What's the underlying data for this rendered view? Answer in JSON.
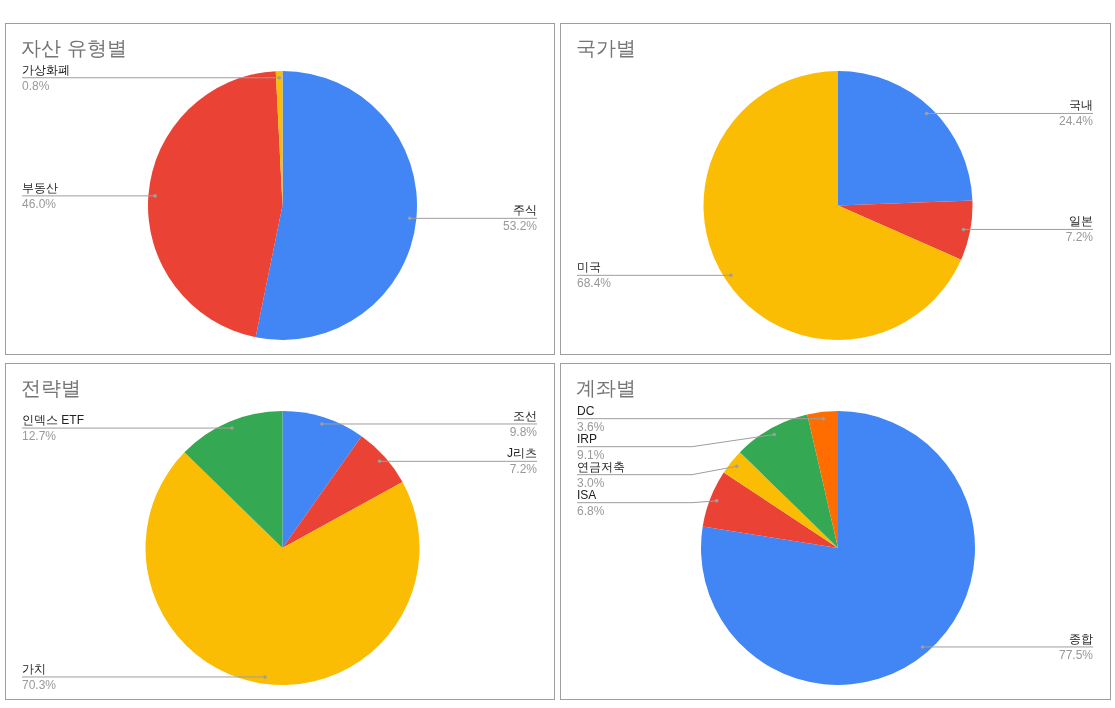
{
  "chart_data": [
    {
      "type": "pie",
      "title": "자산 유형별",
      "categories": [
        "주식",
        "부동산",
        "가상화폐"
      ],
      "values": [
        53.2,
        46.0,
        0.8
      ],
      "value_labels": [
        "53.2%",
        "46.0%",
        "0.8%"
      ],
      "colors": [
        "#4285f4",
        "#ea4335",
        "#fbbc04"
      ]
    },
    {
      "type": "pie",
      "title": "국가별",
      "categories": [
        "국내",
        "일본",
        "미국"
      ],
      "values": [
        24.4,
        7.2,
        68.4
      ],
      "value_labels": [
        "24.4%",
        "7.2%",
        "68.4%"
      ],
      "colors": [
        "#4285f4",
        "#ea4335",
        "#fbbc04"
      ]
    },
    {
      "type": "pie",
      "title": "전략별",
      "categories": [
        "조선",
        "J리츠",
        "가치",
        "인덱스 ETF"
      ],
      "values": [
        9.8,
        7.2,
        70.3,
        12.7
      ],
      "value_labels": [
        "9.8%",
        "7.2%",
        "70.3%",
        "12.7%"
      ],
      "colors": [
        "#4285f4",
        "#ea4335",
        "#fbbc04",
        "#34a853"
      ]
    },
    {
      "type": "pie",
      "title": "계좌별",
      "categories": [
        "종합",
        "ISA",
        "연금저축",
        "IRP",
        "DC"
      ],
      "values": [
        77.5,
        6.8,
        3.0,
        9.1,
        3.6
      ],
      "value_labels": [
        "77.5%",
        "6.8%",
        "3.0%",
        "9.1%",
        "3.6%"
      ],
      "colors": [
        "#4285f4",
        "#ea4335",
        "#fbbc04",
        "#34a853",
        "#ff6d01"
      ]
    }
  ]
}
